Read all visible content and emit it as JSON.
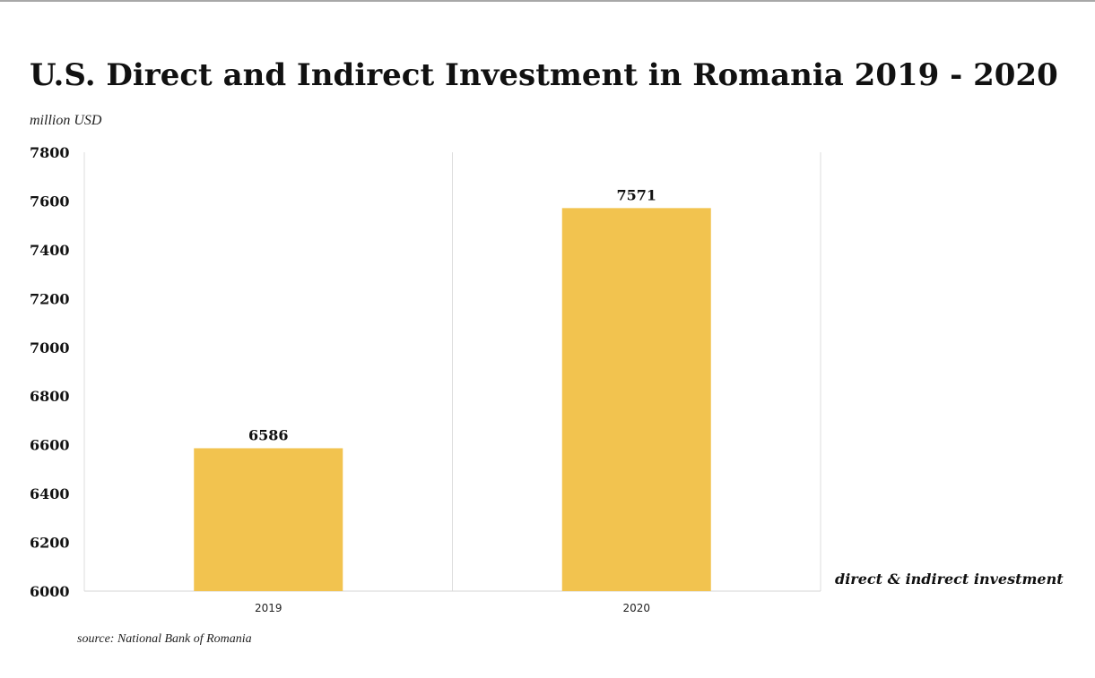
{
  "chart_data": {
    "type": "bar",
    "title": "U.S. Direct and Indirect Investment in Romania 2019 - 2020",
    "ylabel": "million USD",
    "xlabel": "",
    "categories": [
      "2019",
      "2020"
    ],
    "series": [
      {
        "name": "direct & indirect investment",
        "values": [
          6586,
          7571
        ]
      }
    ],
    "data_labels": [
      "6586",
      "7571"
    ],
    "ylim": [
      6000,
      7800
    ],
    "yticks": [
      6000,
      6200,
      6400,
      6600,
      6800,
      7000,
      7200,
      7400,
      7600,
      7800
    ],
    "grid": false,
    "legend": "right",
    "bar_color": "#F2C34F"
  },
  "source": "source: National Bank of Romania"
}
